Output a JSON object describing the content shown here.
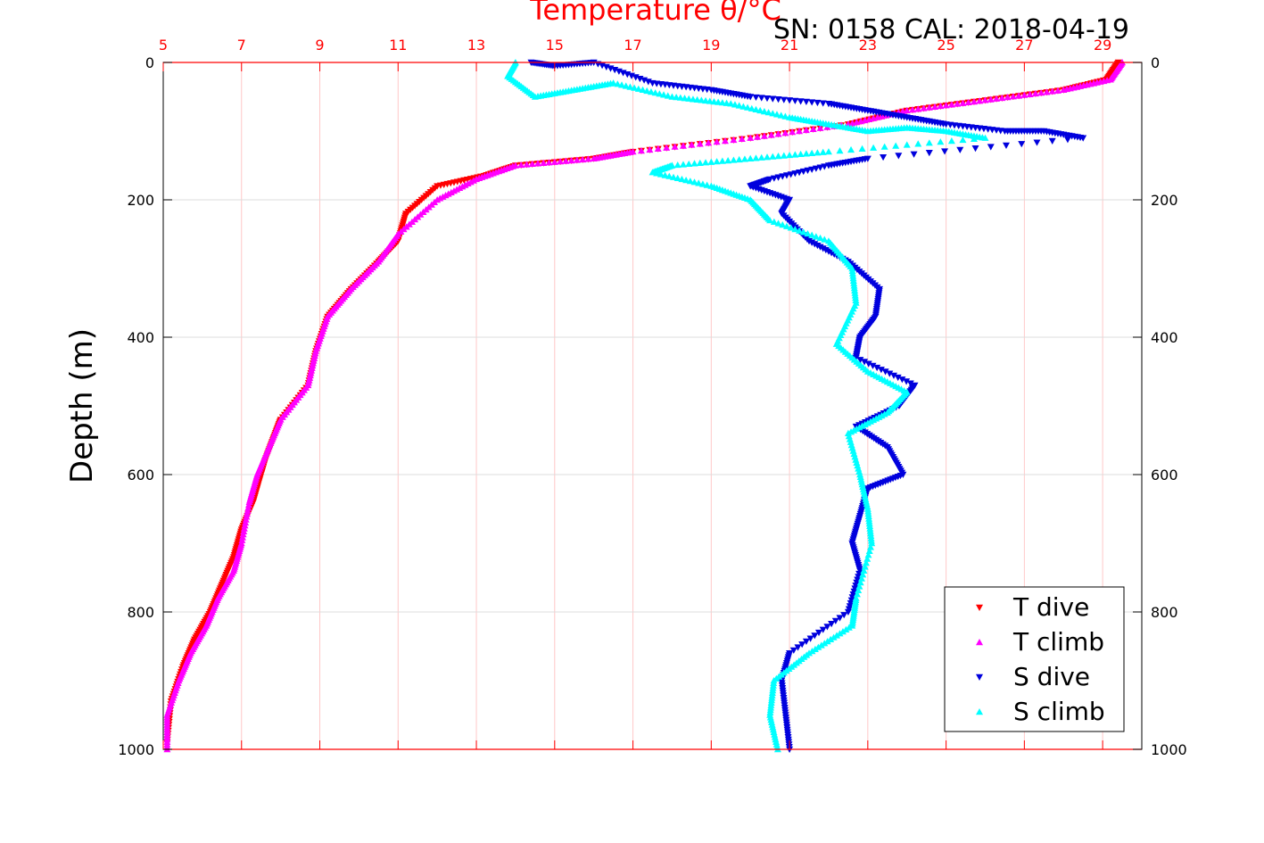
{
  "header": {
    "title": "Temperature θ/°C",
    "serial": "SN: 0158  CAL: 2018-04-19"
  },
  "colors": {
    "t_dive": "#ff0000",
    "t_climb": "#ff00ff",
    "s_dive": "#0000dd",
    "s_climb": "#00ffff",
    "top_axis": "#ff0000",
    "grid_x": "#ffc8c8",
    "grid_y": "#dcdcdc"
  },
  "chart_data": {
    "type": "scatter",
    "title": "Temperature θ/°C",
    "ylabel": "Depth (m)",
    "xlim": [
      5,
      30
    ],
    "ylim": [
      0,
      1000
    ],
    "y_reversed": true,
    "x_ticks": [
      5,
      7,
      9,
      11,
      13,
      15,
      17,
      19,
      21,
      23,
      25,
      27,
      29
    ],
    "y_ticks": [
      0,
      200,
      400,
      600,
      800,
      1000
    ],
    "grid": true,
    "legend_position": "bottom-right",
    "series": [
      {
        "name": "T dive",
        "marker": "triangle-down",
        "color": "#ff0000",
        "x": [
          29.4,
          29.1,
          28.0,
          26.0,
          24.0,
          22.5,
          20.0,
          17.0,
          16.0,
          14.0,
          13.2,
          12.0,
          11.2,
          11.0,
          10.5,
          9.8,
          9.2,
          8.9,
          8.7,
          8.0,
          7.8,
          7.6,
          7.5,
          7.3,
          7.0,
          6.8,
          6.5,
          6.2,
          5.8,
          5.5,
          5.2,
          5.1
        ],
        "y": [
          0,
          25,
          40,
          55,
          70,
          90,
          110,
          130,
          140,
          150,
          165,
          180,
          220,
          260,
          290,
          330,
          370,
          420,
          470,
          520,
          550,
          580,
          600,
          640,
          680,
          720,
          760,
          800,
          840,
          880,
          930,
          990
        ]
      },
      {
        "name": "T climb",
        "marker": "triangle-up",
        "color": "#ff00ff",
        "x": [
          29.5,
          29.2,
          28.0,
          26.0,
          24.0,
          22.5,
          20.0,
          17.0,
          16.0,
          14.0,
          13.0,
          12.0,
          11.0,
          10.5,
          9.8,
          9.2,
          8.9,
          8.7,
          8.0,
          7.7,
          7.4,
          7.2,
          7.0,
          6.8,
          6.4,
          6.1,
          5.7,
          5.4,
          5.1,
          5.1
        ],
        "y": [
          0,
          25,
          40,
          55,
          70,
          90,
          110,
          130,
          140,
          150,
          170,
          200,
          250,
          290,
          330,
          370,
          420,
          470,
          520,
          560,
          600,
          640,
          700,
          740,
          780,
          820,
          860,
          900,
          950,
          1000
        ],
        "points": 30
      },
      {
        "name": "S dive",
        "marker": "triangle-down",
        "color": "#0000dd",
        "x": [
          14.4,
          15.0,
          16.0,
          17.5,
          19.0,
          20.0,
          22.0,
          23.0,
          24.0,
          25.0,
          26.5,
          27.5,
          28.5,
          23.0,
          22.0,
          20.5,
          20.0,
          21.0,
          20.8,
          21.5,
          22.5,
          23.3,
          23.2,
          22.8,
          22.7,
          24.2,
          23.8,
          22.7,
          23.5,
          23.9,
          23.0,
          22.8,
          22.6,
          22.8,
          22.5,
          21.0,
          20.8,
          20.9,
          21.0
        ],
        "y": [
          0,
          5,
          0,
          30,
          40,
          50,
          60,
          70,
          80,
          90,
          100,
          100,
          110,
          140,
          150,
          170,
          180,
          200,
          220,
          260,
          290,
          330,
          370,
          400,
          430,
          470,
          500,
          530,
          560,
          600,
          620,
          660,
          700,
          740,
          800,
          860,
          900,
          950,
          1000
        ]
      },
      {
        "name": "S climb",
        "marker": "triangle-up",
        "color": "#00ffff",
        "x": [
          14.0,
          13.8,
          14.5,
          15.5,
          16.5,
          18.0,
          19.5,
          21.0,
          22.0,
          23.0,
          24.0,
          25.0,
          26.0,
          22.0,
          20.0,
          18.0,
          17.5,
          19.0,
          20.0,
          20.5,
          22.0,
          22.6,
          22.7,
          22.2,
          23.0,
          24.0,
          23.5,
          22.5,
          22.8,
          23.0,
          23.1,
          22.7,
          22.6,
          21.5,
          20.6,
          20.5,
          20.7
        ],
        "y": [
          0,
          20,
          50,
          40,
          30,
          50,
          60,
          80,
          90,
          100,
          95,
          100,
          110,
          130,
          140,
          150,
          160,
          180,
          200,
          230,
          260,
          300,
          350,
          410,
          450,
          480,
          510,
          540,
          600,
          650,
          700,
          780,
          820,
          860,
          900,
          950,
          1000
        ]
      }
    ]
  }
}
